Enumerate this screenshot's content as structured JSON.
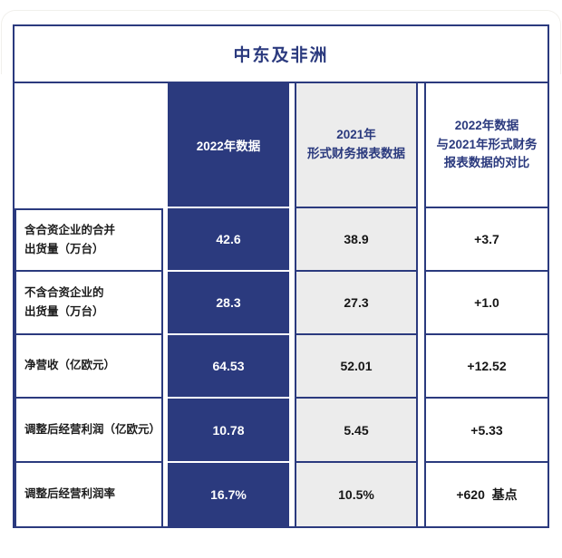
{
  "table": {
    "title": "中东及非洲",
    "columns": {
      "col2022": "2022年数据",
      "col2021": "2021年\n形式财务报表数据",
      "colCompare": "2022年数据\n与2021年形式财务\n报表数据的对比"
    },
    "rows": [
      {
        "label": "含合资企业的合并\n出货量（万台）",
        "v2022": "42.6",
        "v2021": "38.9",
        "delta": "+3.7"
      },
      {
        "label": "不含合资企业的\n出货量（万台）",
        "v2022": "28.3",
        "v2021": "27.3",
        "delta": "+1.0"
      },
      {
        "label": "净营收（亿欧元）",
        "v2022": "64.53",
        "v2021": "52.01",
        "delta": "+12.52"
      },
      {
        "label": "调整后经营利润（亿欧元）",
        "v2022": "10.78",
        "v2021": "5.45",
        "delta": "+5.33"
      },
      {
        "label": "调整后经营利润率",
        "v2022": "16.7%",
        "v2021": "10.5%",
        "delta": "+620  基点"
      }
    ],
    "colors": {
      "navy": "#2b3a7e",
      "gray_fill": "#ececec",
      "text_dark": "#1c1c1c",
      "text_on_blue": "#ffffff"
    }
  },
  "chart_data": {
    "type": "table",
    "title": "中东及非洲",
    "columns": [
      "",
      "2022年数据",
      "2021年形式财务报表数据",
      "2022年数据与2021年形式财务报表数据的对比"
    ],
    "rows": [
      [
        "含合资企业的合并出货量（万台）",
        42.6,
        38.9,
        "+3.7"
      ],
      [
        "不含合资企业的出货量（万台）",
        28.3,
        27.3,
        "+1.0"
      ],
      [
        "净营收（亿欧元）",
        64.53,
        52.01,
        "+12.52"
      ],
      [
        "调整后经营利润（亿欧元）",
        10.78,
        5.45,
        "+5.33"
      ],
      [
        "调整后经营利润率",
        "16.7%",
        "10.5%",
        "+620 基点"
      ]
    ],
    "layout": {
      "highlight_column": "2022年数据",
      "highlight_style": "solid navy fill, white text",
      "secondary_column_style": "light gray fill",
      "comparison_column_separator": "double vertical rule"
    }
  }
}
